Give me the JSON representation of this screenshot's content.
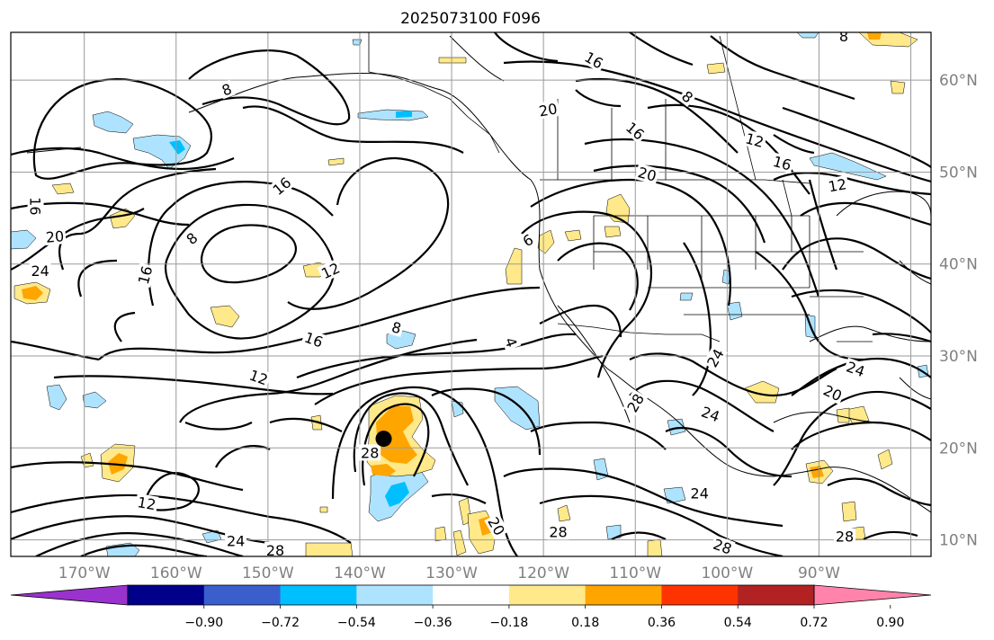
{
  "title": "2025073100 F096",
  "lon_labels": [
    "170°W",
    "160°W",
    "150°W",
    "140°W",
    "130°W",
    "120°W",
    "110°W",
    "100°W",
    "90°W"
  ],
  "lat_labels": [
    "60°N",
    "50°N",
    "40°N",
    "30°N",
    "20°N",
    "10°N"
  ],
  "colorbar": {
    "tick_labels": [
      "−0.90",
      "−0.72",
      "−0.54",
      "−0.36",
      "−0.18",
      "0.18",
      "0.36",
      "0.54",
      "0.72",
      "0.90"
    ],
    "colors": [
      "#9a32cd",
      "#00008b",
      "#3a5fcd",
      "#00bfff",
      "#aee3ff",
      "#ffffff",
      "#ffe98a",
      "#ffa500",
      "#ff3300",
      "#b22222",
      "#ff83aa"
    ]
  },
  "contour_labels": [
    {
      "text": "8",
      "lon": -154.5,
      "lat": 59.0,
      "rot": -20
    },
    {
      "text": "20",
      "lon": -119.5,
      "lat": 56.8,
      "rot": -10
    },
    {
      "text": "16",
      "lon": -114.5,
      "lat": 62.2,
      "rot": 30
    },
    {
      "text": "8",
      "lon": -104.3,
      "lat": 58.2,
      "rot": 40
    },
    {
      "text": "16",
      "lon": -110.0,
      "lat": 54.5,
      "rot": 40
    },
    {
      "text": "12",
      "lon": -97.0,
      "lat": 53.5,
      "rot": 15
    },
    {
      "text": "16",
      "lon": -94.0,
      "lat": 51.0,
      "rot": 15
    },
    {
      "text": "20",
      "lon": -108.7,
      "lat": 49.8,
      "rot": 15
    },
    {
      "text": "12",
      "lon": -88.0,
      "lat": 48.6,
      "rot": -10
    },
    {
      "text": "16",
      "lon": -175.3,
      "lat": 46.3,
      "rot": 90
    },
    {
      "text": "20",
      "lon": -173.2,
      "lat": 43.0,
      "rot": -5
    },
    {
      "text": "24",
      "lon": -174.8,
      "lat": 39.3,
      "rot": 0
    },
    {
      "text": "16",
      "lon": -148.5,
      "lat": 48.5,
      "rot": -40
    },
    {
      "text": "8",
      "lon": -158.3,
      "lat": 42.8,
      "rot": -40
    },
    {
      "text": "12",
      "lon": -143.2,
      "lat": 39.3,
      "rot": -25
    },
    {
      "text": "16",
      "lon": -163.4,
      "lat": 38.8,
      "rot": -75
    },
    {
      "text": "6",
      "lon": -121.7,
      "lat": 42.6,
      "rot": -30
    },
    {
      "text": "8",
      "lon": -136.0,
      "lat": 33.1,
      "rot": 15
    },
    {
      "text": "16",
      "lon": -145.0,
      "lat": 31.8,
      "rot": 20
    },
    {
      "text": "4",
      "lon": -123.5,
      "lat": 31.5,
      "rot": 70
    },
    {
      "text": "12",
      "lon": -151.0,
      "lat": 27.7,
      "rot": 20
    },
    {
      "text": "24",
      "lon": -101.3,
      "lat": 29.8,
      "rot": -60
    },
    {
      "text": "28",
      "lon": -110.0,
      "lat": 24.9,
      "rot": -60
    },
    {
      "text": "24",
      "lon": -101.8,
      "lat": 23.7,
      "rot": 20
    },
    {
      "text": "24",
      "lon": -86.0,
      "lat": 28.6,
      "rot": 20
    },
    {
      "text": "20",
      "lon": -88.5,
      "lat": 26.0,
      "rot": 25
    },
    {
      "text": "28",
      "lon": -138.9,
      "lat": 19.5,
      "rot": 0
    },
    {
      "text": "12",
      "lon": -163.2,
      "lat": 14.0,
      "rot": 10
    },
    {
      "text": "24",
      "lon": -153.5,
      "lat": 9.9,
      "rot": 0
    },
    {
      "text": "28",
      "lon": -149.2,
      "lat": 8.9,
      "rot": 0
    },
    {
      "text": "20",
      "lon": -125.1,
      "lat": 11.5,
      "rot": 60
    },
    {
      "text": "28",
      "lon": -118.4,
      "lat": 10.9,
      "rot": 0
    },
    {
      "text": "24",
      "lon": -103.0,
      "lat": 15.1,
      "rot": 0
    },
    {
      "text": "28",
      "lon": -100.5,
      "lat": 9.3,
      "rot": 20
    },
    {
      "text": "28",
      "lon": -87.2,
      "lat": 10.4,
      "rot": 0
    },
    {
      "text": "8",
      "lon": -87.3,
      "lat": 64.8,
      "rot": 0
    }
  ],
  "storm_marker": {
    "lon": -137.4,
    "lat": 21.0
  }
}
